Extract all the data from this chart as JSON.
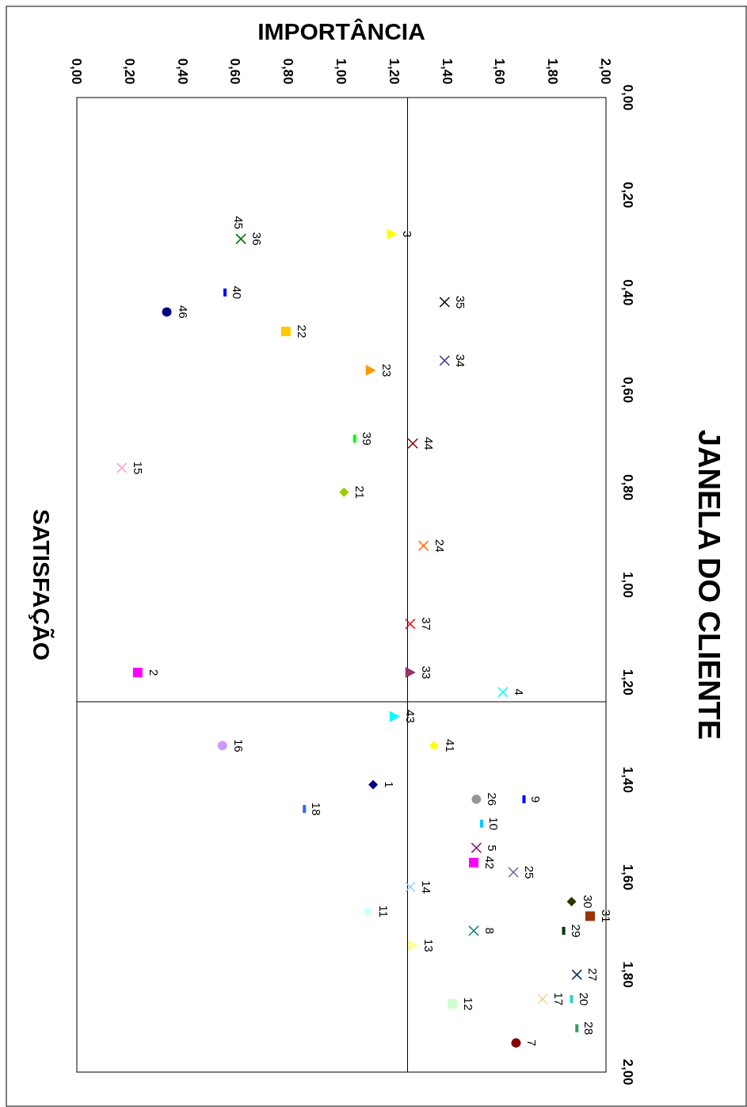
{
  "chart_data": {
    "type": "scatter",
    "title": "JANELA DO CLIENTE",
    "xlabel": "IMPORTÂNCIA",
    "ylabel": "SATISFAÇÃO",
    "xlim": [
      0,
      2
    ],
    "ylim": [
      2,
      0
    ],
    "xticks": [
      {
        "value": 0,
        "label": "0,00"
      },
      {
        "value": 0.2,
        "label": "0,20"
      },
      {
        "value": 0.4,
        "label": "0,40"
      },
      {
        "value": 0.6,
        "label": "0,60"
      },
      {
        "value": 0.8,
        "label": "0,80"
      },
      {
        "value": 1,
        "label": "1,00"
      },
      {
        "value": 1.2,
        "label": "1,20"
      },
      {
        "value": 1.4,
        "label": "1,40"
      },
      {
        "value": 1.6,
        "label": "1,60"
      },
      {
        "value": 1.8,
        "label": "1,80"
      },
      {
        "value": 2,
        "label": "2,00"
      }
    ],
    "yticks": [
      {
        "value": 0,
        "label": "0,00"
      },
      {
        "value": 0.2,
        "label": "0,20"
      },
      {
        "value": 0.4,
        "label": "0,40"
      },
      {
        "value": 0.6,
        "label": "0,60"
      },
      {
        "value": 0.8,
        "label": "0,80"
      },
      {
        "value": 1,
        "label": "1,00"
      },
      {
        "value": 1.2,
        "label": "1,20"
      },
      {
        "value": 1.4,
        "label": "1,40"
      },
      {
        "value": 1.6,
        "label": "1,60"
      },
      {
        "value": 1.8,
        "label": "1,80"
      },
      {
        "value": 2,
        "label": "2,00"
      }
    ],
    "grid": false,
    "legend": false,
    "ref_lines": [
      {
        "axis": "x",
        "value": 1.25,
        "color": "#000000"
      },
      {
        "axis": "y",
        "value": 1.24,
        "color": "#000000"
      }
    ],
    "series": [
      {
        "name": "1",
        "color": "#000080",
        "marker": "diamond",
        "x": [
          1.12
        ],
        "values": [
          1.41
        ]
      },
      {
        "name": "2",
        "color": "#ff00ff",
        "marker": "square",
        "x": [
          0.23
        ],
        "values": [
          1.18
        ]
      },
      {
        "name": "3",
        "color": "#ffff00",
        "marker": "triangle",
        "x": [
          1.19
        ],
        "values": [
          0.28
        ]
      },
      {
        "name": "4",
        "color": "#00ffff",
        "marker": "cross",
        "x": [
          1.61
        ],
        "values": [
          1.22
        ]
      },
      {
        "name": "5",
        "color": "#800080",
        "marker": "cross",
        "x": [
          1.51
        ],
        "values": [
          1.54
        ]
      },
      {
        "name": "7",
        "color": "#800000",
        "marker": "circle",
        "x": [
          1.66
        ],
        "values": [
          1.94
        ]
      },
      {
        "name": "8",
        "color": "#008080",
        "marker": "cross",
        "x": [
          1.5
        ],
        "values": [
          1.71
        ]
      },
      {
        "name": "9",
        "color": "#0000ff",
        "x": [
          1.69
        ],
        "values": [
          1.44
        ]
      },
      {
        "name": "10",
        "color": "#00ccff",
        "x": [
          1.53
        ],
        "values": [
          1.49
        ]
      },
      {
        "name": "11",
        "color": "#ccffff",
        "marker": "diamond",
        "x": [
          1.1
        ],
        "values": [
          1.67
        ]
      },
      {
        "name": "12",
        "color": "#ccffcc",
        "marker": "square",
        "x": [
          1.42
        ],
        "values": [
          1.86
        ]
      },
      {
        "name": "13",
        "color": "#ffff99",
        "marker": "triangle",
        "x": [
          1.27
        ],
        "values": [
          1.74
        ]
      },
      {
        "name": "14",
        "color": "#99ccff",
        "marker": "cross",
        "x": [
          1.26
        ],
        "values": [
          1.62
        ]
      },
      {
        "name": "15",
        "color": "#ff99cc",
        "marker": "cross",
        "x": [
          0.17
        ],
        "values": [
          0.76
        ]
      },
      {
        "name": "16",
        "color": "#cc99ff",
        "marker": "circle",
        "x": [
          0.55
        ],
        "values": [
          1.33
        ]
      },
      {
        "name": "17",
        "color": "#ffcc99",
        "marker": "cross",
        "x": [
          1.76
        ],
        "values": [
          1.85
        ]
      },
      {
        "name": "18",
        "color": "#3366ff",
        "x": [
          0.86
        ],
        "values": [
          1.46
        ]
      },
      {
        "name": "20",
        "color": "#33cccc",
        "x": [
          1.87
        ],
        "values": [
          1.85
        ]
      },
      {
        "name": "21",
        "color": "#99cc00",
        "marker": "diamond",
        "x": [
          1.01
        ],
        "values": [
          0.81
        ]
      },
      {
        "name": "22",
        "color": "#ffcc00",
        "marker": "square",
        "x": [
          0.79
        ],
        "values": [
          0.48
        ]
      },
      {
        "name": "23",
        "color": "#ff9900",
        "marker": "triangle",
        "x": [
          1.11
        ],
        "values": [
          0.56
        ]
      },
      {
        "name": "24",
        "color": "#ff6600",
        "marker": "cross",
        "x": [
          1.31
        ],
        "values": [
          0.92
        ]
      },
      {
        "name": "25",
        "color": "#666699",
        "marker": "cross",
        "x": [
          1.65
        ],
        "values": [
          1.59
        ]
      },
      {
        "name": "26",
        "color": "#969696",
        "marker": "circle",
        "x": [
          1.51
        ],
        "values": [
          1.44
        ]
      },
      {
        "name": "27",
        "color": "#003366",
        "marker": "cross",
        "x": [
          1.89
        ],
        "values": [
          1.8
        ]
      },
      {
        "name": "28",
        "color": "#339966",
        "x": [
          1.89
        ],
        "values": [
          1.91
        ]
      },
      {
        "name": "29",
        "color": "#003300",
        "x": [
          1.84
        ],
        "values": [
          1.71
        ]
      },
      {
        "name": "30",
        "color": "#333300",
        "marker": "diamond",
        "x": [
          1.87
        ],
        "values": [
          1.65
        ]
      },
      {
        "name": "31",
        "color": "#993300",
        "marker": "square",
        "x": [
          1.94
        ],
        "values": [
          1.68
        ]
      },
      {
        "name": "33",
        "color": "#993366",
        "marker": "triangle",
        "x": [
          1.26
        ],
        "values": [
          1.18
        ]
      },
      {
        "name": "34",
        "color": "#333399",
        "marker": "cross",
        "x": [
          1.39
        ],
        "values": [
          0.54
        ]
      },
      {
        "name": "35",
        "color": "#000000",
        "marker": "cross",
        "x": [
          1.39
        ],
        "values": [
          0.42
        ]
      },
      {
        "name": "36",
        "color": "#008000",
        "marker": "cross",
        "x": [
          0.62
        ],
        "values": [
          0.29
        ]
      },
      {
        "name": "37",
        "color": "#ff0000",
        "marker": "cross",
        "x": [
          1.26
        ],
        "values": [
          1.08
        ]
      },
      {
        "name": "39",
        "color": "#00ff00",
        "x": [
          1.05
        ],
        "values": [
          0.7
        ]
      },
      {
        "name": "40",
        "color": "#0000ff",
        "x": [
          0.56
        ],
        "values": [
          0.4
        ]
      },
      {
        "name": "41",
        "color": "#ffff00",
        "marker": "diamond",
        "x": [
          1.35
        ],
        "values": [
          1.33
        ]
      },
      {
        "name": "42",
        "color": "#ff00ff",
        "marker": "square",
        "x": [
          1.5
        ],
        "values": [
          1.57
        ]
      },
      {
        "name": "43",
        "color": "#00ffff",
        "marker": "triangle",
        "x": [
          1.2
        ],
        "values": [
          1.27
        ]
      },
      {
        "name": "44",
        "color": "#800000",
        "marker": "cross",
        "x": [
          1.27
        ],
        "values": [
          0.71
        ]
      },
      {
        "name": "45",
        "color": "#008000",
        "marker": "cross",
        "x": [
          0.62
        ],
        "values": [
          0.29
        ]
      },
      {
        "name": "46",
        "color": "#000080",
        "marker": "circle",
        "x": [
          0.34
        ],
        "values": [
          0.44
        ]
      }
    ]
  }
}
